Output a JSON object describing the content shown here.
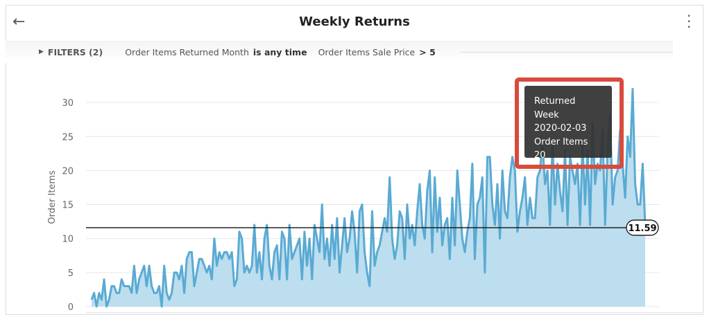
{
  "header": {
    "title": "Weekly Returns",
    "back_icon": "arrow-left-icon",
    "menu_icon": "kebab-icon"
  },
  "filters": {
    "label": "FILTERS (2)",
    "f1_field": "Order Items Returned Month",
    "f1_value": "is any time",
    "f2_field": "Order Items Sale Price",
    "f2_value": "> 5"
  },
  "tooltip": {
    "l1": "Returned Week",
    "l2": "2020-02-03",
    "l3": "Order Items",
    "l4": "20"
  },
  "chart_data": {
    "type": "area",
    "ylabel": "Order Items",
    "xlabel": "",
    "ylim": [
      0,
      32
    ],
    "yticks": [
      "0",
      "5",
      "10",
      "15",
      "20",
      "25",
      "30"
    ],
    "grid": true,
    "color": "#5aaad3",
    "fill": "#bcdeee",
    "reference_line": {
      "value": 11.59,
      "label": "11.59"
    },
    "values": [
      1,
      2,
      0,
      2,
      1,
      4,
      0,
      1,
      3,
      3,
      2,
      2,
      4,
      3,
      3,
      3,
      2,
      6,
      2,
      4,
      5,
      6,
      3,
      6,
      3,
      2,
      2,
      3,
      0,
      6,
      2,
      1,
      2,
      5,
      5,
      4,
      6,
      2,
      7,
      8,
      8,
      3,
      5,
      7,
      7,
      6,
      5,
      6,
      4,
      10,
      6,
      8,
      7,
      8,
      8,
      7,
      8,
      3,
      4,
      11,
      10,
      5,
      6,
      5,
      6,
      12,
      5,
      8,
      4,
      10,
      12,
      6,
      4,
      8,
      9,
      4,
      11,
      10,
      4,
      12,
      7,
      8,
      9,
      10,
      4,
      11,
      6,
      10,
      4,
      12,
      10,
      8,
      15,
      7,
      10,
      6,
      12,
      7,
      13,
      5,
      9,
      13,
      8,
      10,
      14,
      11,
      5,
      14,
      15,
      8,
      5,
      3,
      14,
      6,
      8,
      9,
      11,
      13,
      11,
      19,
      10,
      7,
      9,
      14,
      13,
      7,
      15,
      10,
      12,
      9,
      14,
      18,
      12,
      10,
      17,
      20,
      8,
      19,
      11,
      16,
      9,
      12,
      13,
      7,
      16,
      9,
      20,
      15,
      10,
      8,
      11,
      13,
      21,
      7,
      15,
      16,
      19,
      5,
      22,
      22,
      15,
      12,
      18,
      10,
      20,
      14,
      13,
      19,
      22,
      20,
      11,
      14,
      16,
      19,
      12,
      16,
      13,
      13,
      19,
      20,
      24,
      18,
      20,
      12,
      24,
      15,
      21,
      17,
      14,
      23,
      12,
      22,
      20,
      18,
      21,
      12,
      24,
      15,
      23,
      12,
      27,
      18,
      21,
      20,
      26,
      12,
      23,
      28,
      15,
      19,
      20,
      26,
      21,
      16,
      25,
      22,
      32,
      18,
      15,
      15,
      21,
      12
    ]
  }
}
